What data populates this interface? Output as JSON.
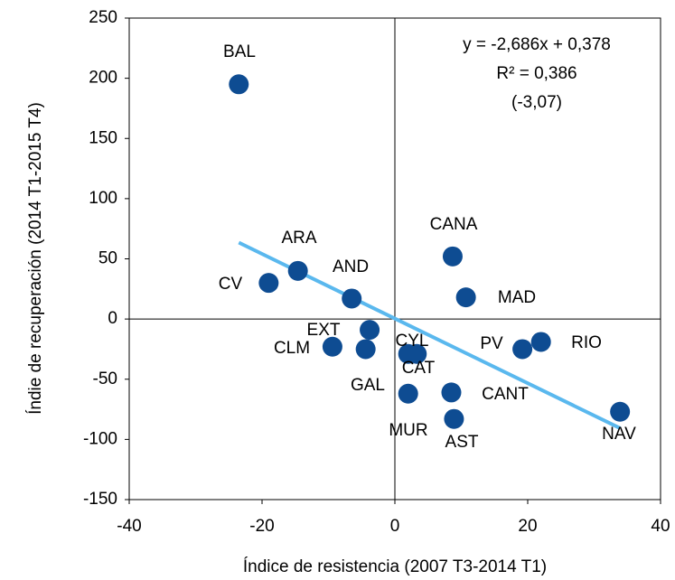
{
  "chart_data": {
    "type": "scatter",
    "x_label": "Índice de resistencia (2007 T3-2014 T1)",
    "y_label": "Índie de recuperación (2014  T1-2015  T4)",
    "xlim": [
      -40,
      40
    ],
    "xticks": [
      -40,
      -20,
      0,
      20,
      40
    ],
    "ylim": [
      -150,
      250
    ],
    "yticks": [
      -150,
      -100,
      -50,
      0,
      50,
      100,
      150,
      200,
      250
    ],
    "color": "#0e4c92",
    "trendline_color": "#5ab8ee",
    "trendline": {
      "slope": -2.686,
      "intercept": 0.378
    },
    "annotations": [
      "y = -2,686x + 0,378",
      "R² = 0,386",
      "(-3,07)"
    ],
    "points": [
      {
        "name": "BAL",
        "x": -23.5,
        "y": 195
      },
      {
        "name": "ARA",
        "x": -14.6,
        "y": 40
      },
      {
        "name": "CV",
        "x": -19.0,
        "y": 30
      },
      {
        "name": "AND",
        "x": -6.5,
        "y": 17
      },
      {
        "name": "EXT",
        "x": -3.8,
        "y": -9
      },
      {
        "name": "CLM",
        "x": -9.4,
        "y": -23
      },
      {
        "name": "CYL",
        "x": 2.0,
        "y": -29
      },
      {
        "name": "CAT",
        "x": 3.3,
        "y": -29
      },
      {
        "name": "GAL",
        "x": 2.0,
        "y": -62
      },
      {
        "name": "MUR",
        "x": -4.4,
        "y": -25
      },
      {
        "name": "AST",
        "x": 8.9,
        "y": -83
      },
      {
        "name": "CANT",
        "x": 8.5,
        "y": -61
      },
      {
        "name": "CANA",
        "x": 8.7,
        "y": 52
      },
      {
        "name": "MAD",
        "x": 10.7,
        "y": 18
      },
      {
        "name": "PV",
        "x": 19.2,
        "y": -25
      },
      {
        "name": "RIO",
        "x": 22.0,
        "y": -19
      },
      {
        "name": "NAV",
        "x": 33.9,
        "y": -77
      }
    ]
  }
}
